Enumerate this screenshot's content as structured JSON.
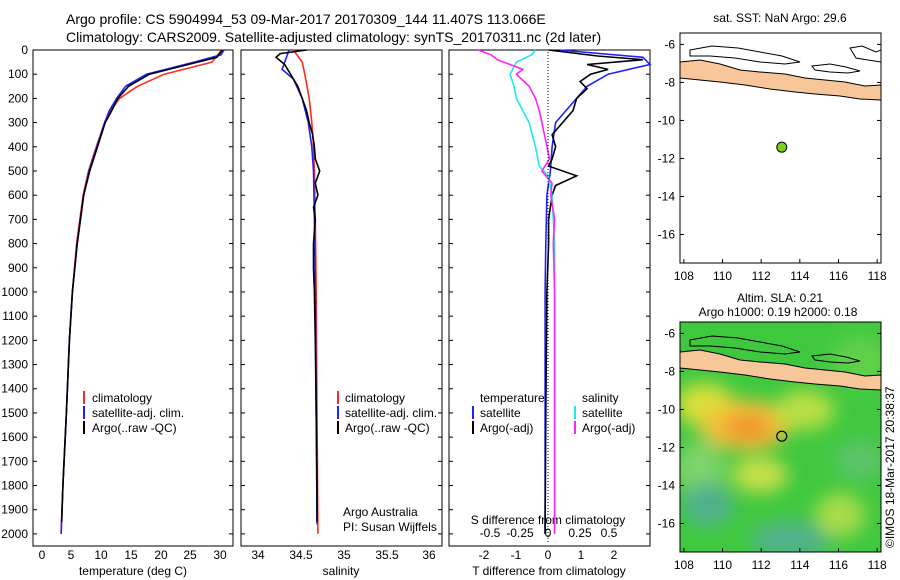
{
  "header": {
    "line1": "Argo profile: CS 5904994_53 09-Mar-2017 20170309_144 11.407S 113.066E",
    "line2": "Climatology: CARS2009. Satellite-adjusted climatology: synTS_20170311.nc (2d later)"
  },
  "colors": {
    "climatology": "#ff2a1a",
    "satellite": "#1f22ff",
    "argo": "#000000",
    "cyan": "#22e8e8",
    "magenta": "#ff22ff",
    "land": "#f7c79a",
    "marker": "#7dd21e"
  },
  "chart_data": [
    {
      "id": "temperature",
      "type": "line",
      "xlabel": "temperature (deg C)",
      "x_ticks": [
        "0",
        "5",
        "10",
        "15",
        "20",
        "25",
        "30"
      ],
      "y_ticks": [
        "0",
        "100",
        "200",
        "300",
        "400",
        "500",
        "600",
        "700",
        "800",
        "900",
        "1000",
        "1100",
        "1200",
        "1300",
        "1400",
        "1500",
        "1600",
        "1700",
        "1800",
        "1900",
        "2000"
      ],
      "xlim": [
        -2,
        31.5
      ],
      "ylim": [
        2050,
        0
      ],
      "y_inverted": true,
      "legend": [
        "climatology",
        "satellite-adj. clim.",
        "Argo(..raw -QC)"
      ],
      "series": [
        {
          "name": "climatology",
          "depth": [
            0,
            50,
            100,
            150,
            200,
            250,
            300,
            400,
            500,
            600,
            800,
            1000,
            1200,
            1500,
            1800,
            2000
          ],
          "values": [
            29.6,
            28,
            20,
            15.5,
            12.5,
            11,
            10,
            8.6,
            7.3,
            6.4,
            5.3,
            4.6,
            4.1,
            3.6,
            3.0,
            2.7
          ]
        },
        {
          "name": "satellite-adj. clim.",
          "depth": [
            0,
            20,
            50,
            100,
            150,
            200,
            250,
            300,
            400,
            500,
            600,
            800,
            1000,
            1200,
            1500,
            1800,
            2000
          ],
          "values": [
            30.0,
            29.5,
            25,
            17,
            13.5,
            12,
            10.8,
            10,
            8.7,
            7.4,
            6.5,
            5.4,
            4.6,
            4.1,
            3.6,
            3.0,
            2.7
          ]
        },
        {
          "name": "Argo(..raw -QC)",
          "depth": [
            0,
            30,
            60,
            100,
            150,
            200,
            250,
            300,
            400,
            500,
            550,
            600,
            800,
            1000,
            1200,
            1500,
            1800,
            1950
          ],
          "values": [
            29.7,
            28.8,
            24,
            17.5,
            14,
            12.2,
            11.2,
            10.1,
            8.8,
            7.5,
            7.0,
            6.5,
            5.4,
            4.6,
            4.1,
            3.6,
            3.0,
            2.8
          ]
        }
      ]
    },
    {
      "id": "salinity",
      "type": "line",
      "xlabel": "salinity",
      "x_ticks": [
        "34",
        "34.5",
        "35",
        "35.5",
        "36"
      ],
      "xlim": [
        33.85,
        36.15
      ],
      "ylim": [
        2050,
        0
      ],
      "y_inverted": true,
      "legend": [
        "climatology",
        "satellite-adj. clim.",
        "Argo(..raw -QC)"
      ],
      "annotation": [
        "Argo Australia",
        "PI: Susan Wijffels"
      ],
      "series": [
        {
          "name": "climatology",
          "depth": [
            0,
            50,
            100,
            200,
            300,
            400,
            500,
            700,
            1000,
            1500,
            2000
          ],
          "values": [
            34.45,
            34.55,
            34.58,
            34.63,
            34.66,
            34.68,
            34.69,
            34.7,
            34.71,
            34.72,
            34.73
          ]
        },
        {
          "name": "satellite-adj. clim.",
          "depth": [
            0,
            50,
            80,
            120,
            200,
            300,
            400,
            500,
            700,
            1000,
            1500,
            1960
          ],
          "values": [
            34.4,
            34.35,
            34.32,
            34.45,
            34.55,
            34.62,
            34.66,
            34.68,
            34.69,
            34.7,
            34.71,
            34.72
          ]
        },
        {
          "name": "Argo(..raw -QC)",
          "depth": [
            0,
            15,
            30,
            60,
            90,
            120,
            150,
            200,
            250,
            300,
            350,
            400,
            450,
            500,
            550,
            600,
            650,
            700,
            800,
            900,
            1000,
            1200,
            1500,
            1800,
            1950
          ],
          "values": [
            34.6,
            34.3,
            34.25,
            34.35,
            34.4,
            34.45,
            34.5,
            34.55,
            34.6,
            34.63,
            34.67,
            34.69,
            34.7,
            34.75,
            34.7,
            34.73,
            34.68,
            34.7,
            34.68,
            34.68,
            34.69,
            34.7,
            34.71,
            34.72,
            34.72
          ]
        }
      ]
    },
    {
      "id": "difference",
      "type": "line",
      "xlabel": "T difference from climatology",
      "x2label": "S difference from climatology",
      "x_ticks": [
        "-2",
        "-1",
        "0",
        "1",
        "2"
      ],
      "x2_ticks": [
        "-0.5",
        "-0.25",
        "0",
        "0.25",
        "0.5"
      ],
      "xlim": [
        -2.75,
        3.0
      ],
      "ylim": [
        2050,
        0
      ],
      "y_inverted": true,
      "legend_temperature": [
        "temperature",
        "satellite",
        "Argo(-adj)"
      ],
      "legend_salinity": [
        "salinity",
        "satellite",
        "Argo(-adj)"
      ],
      "series": [
        {
          "name": "T satellite",
          "depth": [
            0,
            30,
            60,
            100,
            150,
            200,
            300,
            400,
            500,
            600,
            800,
            1000,
            1500,
            2000
          ],
          "values": [
            0.4,
            2.8,
            3.0,
            1.8,
            1.2,
            0.9,
            0.3,
            0.2,
            0.15,
            0.05,
            0.02,
            0.0,
            0.0,
            0.0
          ]
        },
        {
          "name": "T Argo(-adj)",
          "depth": [
            0,
            25,
            40,
            60,
            80,
            100,
            130,
            160,
            200,
            250,
            300,
            350,
            400,
            450,
            480,
            520,
            560,
            600,
            700,
            800,
            1000,
            1500,
            2000
          ],
          "values": [
            0.1,
            1.5,
            2.8,
            1.2,
            1.8,
            1.3,
            1.0,
            1.2,
            0.9,
            0.8,
            0.5,
            0.2,
            0.3,
            0.2,
            0.1,
            0.9,
            0.3,
            0.2,
            0.1,
            0.1,
            0.05,
            0.02,
            0.0
          ]
        },
        {
          "name": "S satellite",
          "depth": [
            0,
            20,
            50,
            100,
            150,
            200,
            300,
            400,
            480,
            520,
            600,
            800,
            1000,
            1500,
            2000
          ],
          "values": [
            -0.15,
            -0.18,
            -0.3,
            -0.35,
            -0.32,
            -0.3,
            -0.2,
            -0.15,
            -0.12,
            -0.05,
            -0.02,
            0.0,
            0.0,
            0.0,
            0.0
          ]
        },
        {
          "name": "S Argo(-adj)",
          "depth": [
            0,
            20,
            40,
            60,
            80,
            100,
            150,
            200,
            250,
            300,
            350,
            400,
            450,
            500,
            550,
            600,
            700,
            800,
            1000,
            1500,
            2000
          ],
          "values": [
            -0.6,
            -0.5,
            -0.45,
            -0.35,
            -0.25,
            -0.3,
            -0.2,
            -0.15,
            -0.12,
            -0.1,
            -0.08,
            -0.06,
            -0.04,
            -0.1,
            -0.02,
            -0.03,
            0.0,
            -0.01,
            0.0,
            0.0,
            0.0
          ]
        }
      ]
    },
    {
      "id": "map_sst",
      "type": "scatter",
      "title": "sat. SST: NaN Argo: 29.6",
      "x_ticks": [
        "108",
        "110",
        "112",
        "114",
        "116",
        "118"
      ],
      "y_ticks": [
        "-6",
        "-8",
        "-10",
        "-12",
        "-14",
        "-16"
      ],
      "xlim": [
        107.8,
        118.2
      ],
      "ylim": [
        -17.5,
        -5.4
      ],
      "point": {
        "lon": 113.066,
        "lat": -11.407
      }
    },
    {
      "id": "map_sla",
      "type": "heatmap",
      "title1": "Altim. SLA: 0.21",
      "title2": "Argo h1000: 0.19 h2000: 0.18",
      "x_ticks": [
        "108",
        "110",
        "112",
        "114",
        "116",
        "118"
      ],
      "y_ticks": [
        "-6",
        "-8",
        "-10",
        "-12",
        "-14",
        "-16"
      ],
      "xlim": [
        107.8,
        118.2
      ],
      "ylim": [
        -17.5,
        -5.4
      ],
      "point": {
        "lon": 113.066,
        "lat": -11.407
      }
    }
  ],
  "footer": {
    "stamp": "©IMOS 18-Mar-2017 20:38:37"
  }
}
